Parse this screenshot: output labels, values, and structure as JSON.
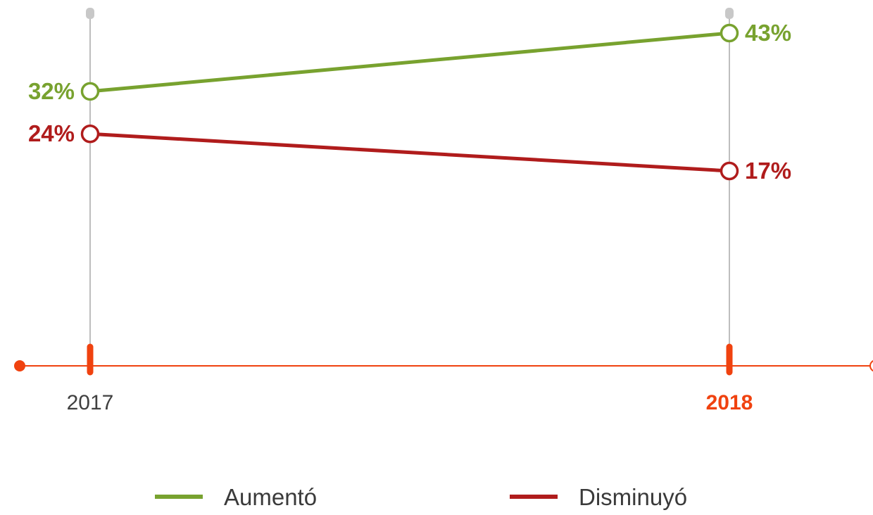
{
  "colors": {
    "increase": "#78a22f",
    "decrease": "#b01c1c",
    "axis": "#f0420f",
    "guide": "#9a9a9a",
    "guide_cap": "#c8c8c8",
    "year_default": "#404040"
  },
  "chart_data": {
    "type": "line",
    "title": "",
    "xlabel": "",
    "ylabel": "",
    "categories": [
      "2017",
      "2018"
    ],
    "highlight_category": "2018",
    "ylim": [
      0,
      50
    ],
    "grid": false,
    "legend_position": "bottom",
    "series": [
      {
        "name": "Aumentó",
        "values": [
          32,
          43
        ],
        "labels": [
          "32%",
          "43%"
        ],
        "color_key": "increase"
      },
      {
        "name": "Disminuyó",
        "values": [
          24,
          17
        ],
        "labels": [
          "24%",
          "17%"
        ],
        "color_key": "decrease"
      }
    ]
  }
}
